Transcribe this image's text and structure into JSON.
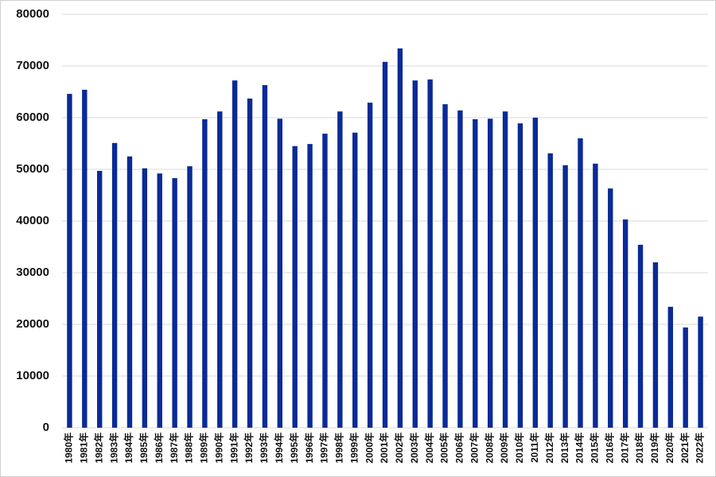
{
  "chart_data": {
    "type": "bar",
    "categories": [
      "1980年",
      "1981年",
      "1982年",
      "1983年",
      "1984年",
      "1985年",
      "1986年",
      "1987年",
      "1988年",
      "1989年",
      "1990年",
      "1991年",
      "1992年",
      "1993年",
      "1994年",
      "1995年",
      "1996年",
      "1997年",
      "1998年",
      "1999年",
      "2000年",
      "2001年",
      "2002年",
      "2003年",
      "2004年",
      "2005年",
      "2006年",
      "2007年",
      "2008年",
      "2009年",
      "2010年",
      "2011年",
      "2012年",
      "2013年",
      "2014年",
      "2015年",
      "2016年",
      "2017年",
      "2018年",
      "2019年",
      "2020年",
      "2021年",
      "2022年"
    ],
    "values": [
      64600,
      65400,
      49700,
      55100,
      52500,
      50200,
      49200,
      48300,
      50600,
      59700,
      61200,
      67200,
      63700,
      66300,
      59800,
      54500,
      54900,
      56900,
      61200,
      57100,
      62900,
      70800,
      73400,
      67200,
      67400,
      62600,
      61400,
      59700,
      59800,
      61200,
      58900,
      60000,
      53100,
      50800,
      56000,
      51100,
      46300,
      40300,
      35400,
      32000,
      23400,
      19400,
      21500
    ],
    "color": "#0a2a96",
    "ylim": [
      0,
      80000
    ],
    "yticks": [
      0,
      10000,
      20000,
      30000,
      40000,
      50000,
      60000,
      70000,
      80000
    ],
    "grid": true
  }
}
